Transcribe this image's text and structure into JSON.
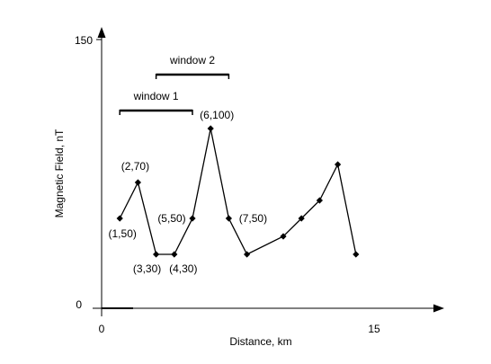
{
  "chart_data": {
    "type": "line",
    "xlabel": "Distance, km",
    "ylabel": "Magnetic Field, nT",
    "xlim": [
      0,
      19
    ],
    "ylim": [
      0,
      150
    ],
    "x_ticks": [
      "0",
      "15"
    ],
    "y_ticks": [
      "0",
      "150"
    ],
    "grid": false,
    "series": [
      {
        "x": [
          1,
          2,
          3,
          4,
          5,
          6,
          7,
          8,
          10,
          11,
          12,
          13,
          14
        ],
        "y": [
          50,
          70,
          30,
          30,
          50,
          100,
          50,
          30,
          40,
          50,
          60,
          80,
          30
        ]
      }
    ],
    "point_labels": [
      {
        "text": "(1,50)",
        "x": 1,
        "y": 50
      },
      {
        "text": "(2,70)",
        "x": 2,
        "y": 70
      },
      {
        "text": "(3,30)",
        "x": 3,
        "y": 30
      },
      {
        "text": "(4,30)",
        "x": 4,
        "y": 30
      },
      {
        "text": "(5,50)",
        "x": 5,
        "y": 50
      },
      {
        "text": "(6,100)",
        "x": 6,
        "y": 100
      },
      {
        "text": "(7,50)",
        "x": 7,
        "y": 50
      }
    ],
    "windows": [
      {
        "label": "window 1",
        "x_start": 1,
        "x_end": 5,
        "y": 110
      },
      {
        "label": "window 2",
        "x_start": 3,
        "x_end": 7,
        "y": 130
      }
    ]
  }
}
